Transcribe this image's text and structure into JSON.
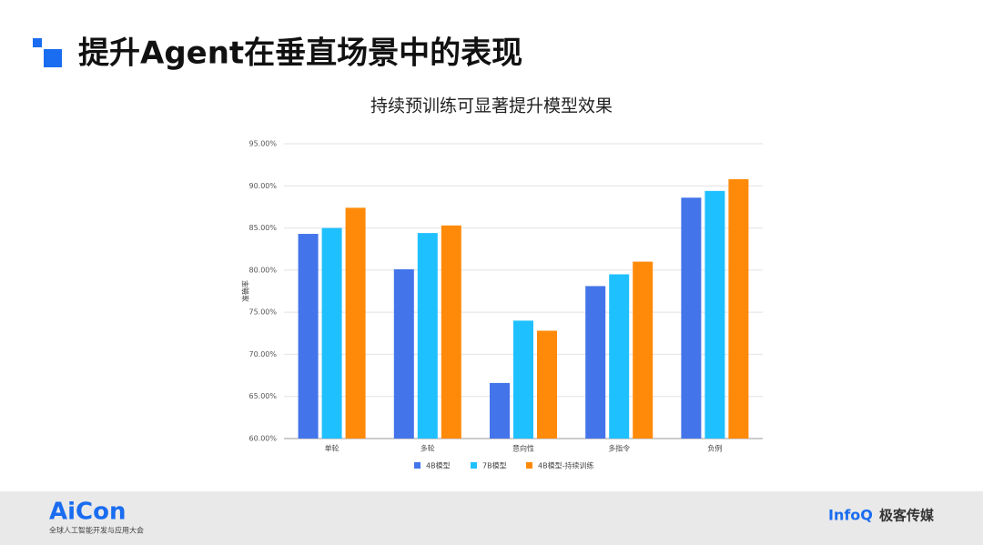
{
  "header": {
    "title": "提升Agent在垂直场景中的表现"
  },
  "chart_data": {
    "type": "bar",
    "title": "持续预训练可显著提升模型效果",
    "y_label": "准确率",
    "categories": [
      "单轮",
      "多轮",
      "意向性",
      "多指令",
      "负例"
    ],
    "series": [
      {
        "name": "4B模型",
        "color": "#4374ea",
        "values": [
          84.3,
          80.1,
          66.6,
          78.1,
          88.6
        ]
      },
      {
        "name": "7B模型",
        "color": "#1fc0ff",
        "values": [
          85.0,
          84.4,
          74.0,
          79.5,
          89.4
        ]
      },
      {
        "name": "4B模型-持续训练",
        "color": "#ff8a0a",
        "values": [
          87.4,
          85.3,
          72.8,
          81.0,
          90.8
        ]
      }
    ],
    "ylim": [
      60,
      95
    ],
    "yticks": [
      {
        "value": 60,
        "label": "60.00%"
      },
      {
        "value": 65,
        "label": "65.00%"
      },
      {
        "value": 70,
        "label": "70.00%"
      },
      {
        "value": 75,
        "label": "75.00%"
      },
      {
        "value": 80,
        "label": "80.00%"
      },
      {
        "value": 85,
        "label": "85.00%"
      },
      {
        "value": 90,
        "label": "90.00%"
      },
      {
        "value": 95,
        "label": "95.00%"
      }
    ],
    "grid": true,
    "legend": "bottom"
  },
  "footer": {
    "left_logo": "AiCon",
    "left_subtitle": "全球人工智能开发与应用大会",
    "right_logo": "InfoQ",
    "right_text": "极客传媒"
  }
}
